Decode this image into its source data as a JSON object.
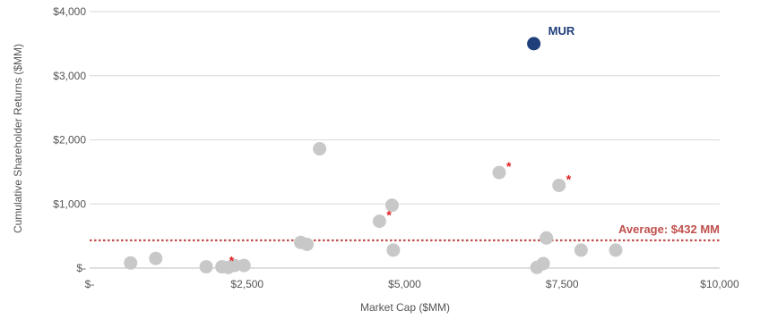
{
  "chart_data": {
    "type": "scatter",
    "title": "",
    "xlabel": "Market Cap ($MM)",
    "ylabel": "Cumulative Shareholder Returns ($MM)",
    "xlim": [
      0,
      10000
    ],
    "ylim": [
      0,
      4000
    ],
    "x_ticks": [
      {
        "value": 0,
        "label": "$-"
      },
      {
        "value": 2500,
        "label": "$2,500"
      },
      {
        "value": 5000,
        "label": "$5,000"
      },
      {
        "value": 7500,
        "label": "$7,500"
      },
      {
        "value": 10000,
        "label": "$10,000"
      }
    ],
    "y_ticks": [
      {
        "value": 0,
        "label": "$-"
      },
      {
        "value": 1000,
        "label": "$1,000"
      },
      {
        "value": 2000,
        "label": "$2,000"
      },
      {
        "value": 3000,
        "label": "$3,000"
      },
      {
        "value": 4000,
        "label": "$4,000"
      }
    ],
    "grid": "horizontal",
    "colors": {
      "points": "#c8c8c8",
      "highlight": "#1f3f7a",
      "average": "#c0504d",
      "star": "#e02020",
      "grid": "#d9d9d9",
      "axis": "#bfbfbf"
    },
    "points": [
      {
        "x": 650,
        "y": 80
      },
      {
        "x": 1050,
        "y": 150
      },
      {
        "x": 1850,
        "y": 20
      },
      {
        "x": 2100,
        "y": 20,
        "star": true
      },
      {
        "x": 2200,
        "y": 10
      },
      {
        "x": 2300,
        "y": 40
      },
      {
        "x": 2450,
        "y": 40
      },
      {
        "x": 3350,
        "y": 400
      },
      {
        "x": 3450,
        "y": 370
      },
      {
        "x": 3650,
        "y": 1860
      },
      {
        "x": 4600,
        "y": 730,
        "star": true
      },
      {
        "x": 4800,
        "y": 980
      },
      {
        "x": 4820,
        "y": 280
      },
      {
        "x": 6500,
        "y": 1490,
        "star": true
      },
      {
        "x": 7100,
        "y": 10
      },
      {
        "x": 7200,
        "y": 70
      },
      {
        "x": 7250,
        "y": 470
      },
      {
        "x": 7450,
        "y": 1290,
        "star": true
      },
      {
        "x": 7800,
        "y": 280
      },
      {
        "x": 8350,
        "y": 280
      }
    ],
    "highlight": {
      "label": "MUR",
      "x": 7050,
      "y": 3500
    },
    "average": {
      "value": 432,
      "label": "Average: $432 MM"
    }
  }
}
